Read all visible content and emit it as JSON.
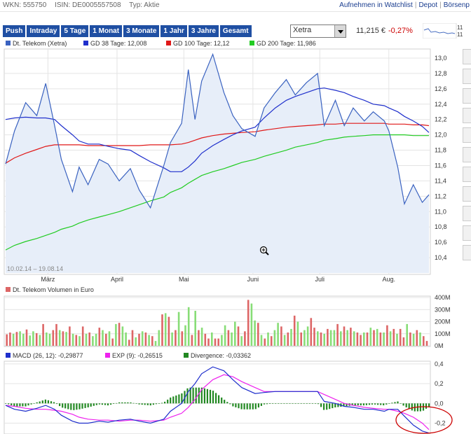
{
  "header": {
    "wkn_label": "WKN: 555750",
    "isin_label": "ISIN: DE0005557508",
    "typ_label": "Typ: Aktie",
    "links": [
      "Aufnehmen in Watchlist",
      "Depot",
      "Börsenp"
    ]
  },
  "tabs": [
    "Push",
    "Intraday",
    "5 Tage",
    "1 Monat",
    "3 Monate",
    "1 Jahr",
    "3 Jahre",
    "Gesamt"
  ],
  "exchange_select": {
    "value": "Xetra"
  },
  "quote": {
    "price": "11,215 €",
    "change": "-0,27%"
  },
  "mini_chart_labels": [
    "11",
    "11"
  ],
  "colors": {
    "price": "#3a62c0",
    "gd38": "#1f2fcc",
    "gd100": "#e01818",
    "gd200": "#22cc22",
    "vol_up": "#88dd77",
    "vol_down": "#dd6666",
    "macd": "#1f2fcc",
    "exp": "#ee22ee",
    "divergence": "#228822",
    "annotation": "#cc0000"
  },
  "sidebar_icons": [
    "bar-chart-icon",
    "clock-icon",
    "gear-icon",
    "pencil-icon",
    "zoom-in-icon",
    "zoom-out-icon",
    "play-icon",
    "print-icon",
    "save-icon",
    "close-icon",
    "arrow-icon"
  ],
  "chart_data": [
    {
      "type": "line",
      "legend": [
        "Dt. Telekom (Xetra)",
        "GD 38 Tage: 12,008",
        "GD 100 Tage: 12,12",
        "GD 200 Tage: 11,986"
      ],
      "date_range": "10.02.14 – 19.08.14",
      "x_labels": [
        "März",
        "April",
        "Mai",
        "Juni",
        "Juli",
        "Aug."
      ],
      "ylim": [
        10.2,
        13.1
      ],
      "yticks": [
        "10,4",
        "10,6",
        "10,8",
        "11,0",
        "11,2",
        "11,4",
        "11,6",
        "11,8",
        "12,0",
        "12,2",
        "12,4",
        "12,6",
        "12,8",
        "13,0"
      ],
      "x": [
        "2014-02-10",
        "2014-02-14",
        "2014-02-19",
        "2014-02-24",
        "2014-02-28",
        "2014-03-04",
        "2014-03-07",
        "2014-03-12",
        "2014-03-15",
        "2014-03-19",
        "2014-03-24",
        "2014-03-28",
        "2014-04-02",
        "2014-04-07",
        "2014-04-11",
        "2014-04-16",
        "2014-04-22",
        "2014-04-25",
        "2014-04-30",
        "2014-05-03",
        "2014-05-06",
        "2014-05-09",
        "2014-05-14",
        "2014-05-19",
        "2014-05-23",
        "2014-05-27",
        "2014-06-02",
        "2014-06-06",
        "2014-06-11",
        "2014-06-16",
        "2014-06-20",
        "2014-06-25",
        "2014-06-30",
        "2014-07-03",
        "2014-07-08",
        "2014-07-12",
        "2014-07-16",
        "2014-07-21",
        "2014-07-25",
        "2014-07-30",
        "2014-08-01",
        "2014-08-05",
        "2014-08-08",
        "2014-08-12",
        "2014-08-16",
        "2014-08-19"
      ],
      "series": [
        {
          "name": "Dt. Telekom (Xetra)",
          "values": [
            11.62,
            12.05,
            12.42,
            12.25,
            12.67,
            12.12,
            11.68,
            11.26,
            11.58,
            11.35,
            11.68,
            11.62,
            11.4,
            11.56,
            11.28,
            11.05,
            11.6,
            11.9,
            12.15,
            12.85,
            12.2,
            12.7,
            13.05,
            12.55,
            12.25,
            12.08,
            11.98,
            12.35,
            12.55,
            12.72,
            12.52,
            12.68,
            12.8,
            12.12,
            12.45,
            12.12,
            12.35,
            12.18,
            12.3,
            12.18,
            12.05,
            11.58,
            11.1,
            11.35,
            11.12,
            11.22
          ]
        },
        {
          "name": "GD 38 Tage",
          "values": [
            12.2,
            12.22,
            12.23,
            12.22,
            12.22,
            12.2,
            12.12,
            12.0,
            11.92,
            11.88,
            11.88,
            11.85,
            11.82,
            11.8,
            11.73,
            11.65,
            11.57,
            11.52,
            11.52,
            11.58,
            11.66,
            11.76,
            11.86,
            11.94,
            12.0,
            12.05,
            12.1,
            12.22,
            12.35,
            12.45,
            12.5,
            12.55,
            12.6,
            12.61,
            12.58,
            12.55,
            12.5,
            12.45,
            12.4,
            12.38,
            12.35,
            12.3,
            12.24,
            12.18,
            12.11,
            12.03
          ]
        },
        {
          "name": "GD 100 Tage",
          "values": [
            11.63,
            11.7,
            11.76,
            11.81,
            11.85,
            11.87,
            11.87,
            11.87,
            11.87,
            11.86,
            11.86,
            11.86,
            11.86,
            11.86,
            11.86,
            11.87,
            11.87,
            11.87,
            11.88,
            11.9,
            11.93,
            11.96,
            11.99,
            12.01,
            12.02,
            12.03,
            12.04,
            12.06,
            12.08,
            12.1,
            12.11,
            12.12,
            12.13,
            12.14,
            12.14,
            12.15,
            12.15,
            12.15,
            12.15,
            12.15,
            12.14,
            12.14,
            12.14,
            12.13,
            12.13,
            12.12
          ]
        },
        {
          "name": "GD 200 Tage",
          "values": [
            10.5,
            10.56,
            10.61,
            10.65,
            10.69,
            10.73,
            10.77,
            10.81,
            10.85,
            10.89,
            10.93,
            10.96,
            11.0,
            11.05,
            11.09,
            11.14,
            11.19,
            11.25,
            11.31,
            11.37,
            11.42,
            11.47,
            11.52,
            11.56,
            11.6,
            11.64,
            11.68,
            11.72,
            11.76,
            11.8,
            11.84,
            11.87,
            11.9,
            11.93,
            11.95,
            11.97,
            11.98,
            11.99,
            12.0,
            12.0,
            12.0,
            12.0,
            12.0,
            11.99,
            11.99,
            11.99
          ]
        }
      ]
    },
    {
      "type": "bar",
      "legend": [
        "Dt. Telekom Volumen in Euro"
      ],
      "ylim": [
        0,
        400
      ],
      "yticks": [
        "0M",
        "100M",
        "200M",
        "300M",
        "400M"
      ],
      "values": [
        95,
        110,
        100,
        115,
        120,
        100,
        135,
        85,
        120,
        105,
        90,
        180,
        110,
        100,
        130,
        180,
        130,
        120,
        115,
        160,
        100,
        90,
        80,
        160,
        100,
        110,
        80,
        100,
        150,
        130,
        100,
        120,
        60,
        180,
        190,
        160,
        110,
        50,
        130,
        70,
        100,
        120,
        110,
        90,
        80,
        40,
        130,
        260,
        270,
        240,
        110,
        130,
        280,
        120,
        170,
        320,
        90,
        290,
        130,
        150,
        100,
        60,
        110,
        60,
        60,
        90,
        170,
        130,
        110,
        200,
        160,
        80,
        120,
        380,
        350,
        210,
        190,
        90,
        60,
        110,
        80,
        130,
        190,
        160,
        90,
        110,
        140,
        250,
        200,
        110,
        130,
        160,
        230,
        150,
        120,
        110,
        100,
        140,
        130,
        130,
        180,
        120,
        160,
        130,
        150,
        120,
        110,
        90,
        110,
        110,
        150,
        130,
        140,
        110,
        110,
        170,
        120,
        140,
        100,
        140,
        70,
        180,
        110,
        100,
        130,
        110,
        80,
        40
      ],
      "directions": [
        "d",
        "d",
        "u",
        "d",
        "u",
        "u",
        "d",
        "u",
        "u",
        "d",
        "u",
        "d",
        "u",
        "u",
        "d",
        "d",
        "u",
        "d",
        "u",
        "d",
        "u",
        "d",
        "u",
        "d",
        "u",
        "d",
        "u",
        "u",
        "d",
        "u",
        "d",
        "u",
        "d",
        "u",
        "d",
        "u",
        "u",
        "d",
        "d",
        "u",
        "d",
        "u",
        "d",
        "u",
        "d",
        "u",
        "u",
        "d",
        "u",
        "d",
        "u",
        "d",
        "u",
        "d",
        "u",
        "u",
        "d",
        "u",
        "d",
        "u",
        "d",
        "d",
        "u",
        "d",
        "d",
        "u",
        "u",
        "d",
        "u",
        "u",
        "d",
        "u",
        "d",
        "d",
        "u",
        "u",
        "d",
        "u",
        "d",
        "u",
        "d",
        "u",
        "u",
        "d",
        "u",
        "d",
        "u",
        "d",
        "u",
        "d",
        "u",
        "u",
        "d",
        "d",
        "u",
        "d",
        "u",
        "d",
        "u",
        "u",
        "d",
        "u",
        "d",
        "u",
        "d",
        "u",
        "d",
        "d",
        "u",
        "d",
        "u",
        "d",
        "u",
        "d",
        "u",
        "d",
        "u",
        "d",
        "u",
        "d",
        "d",
        "u",
        "d",
        "u",
        "d",
        "u",
        "d",
        "d"
      ]
    },
    {
      "type": "line",
      "legend": [
        "MACD (26, 12): -0,29877",
        "EXP (9): -0,26515",
        "Divergence: -0,03362"
      ],
      "ylim": [
        -0.31,
        0.42
      ],
      "yticks": [
        "-0,2",
        "0,0",
        "0,2",
        "0,4"
      ],
      "series": [
        {
          "name": "MACD (26, 12)",
          "values": [
            -0.02,
            -0.06,
            -0.08,
            -0.05,
            -0.02,
            -0.06,
            -0.12,
            -0.18,
            -0.2,
            -0.2,
            -0.18,
            -0.19,
            -0.17,
            -0.16,
            -0.18,
            -0.2,
            -0.16,
            -0.08,
            0.0,
            0.12,
            0.2,
            0.3,
            0.37,
            0.33,
            0.24,
            0.16,
            0.1,
            0.11,
            0.12,
            0.12,
            0.12,
            0.12,
            0.12,
            0.02,
            0.0,
            -0.03,
            -0.04,
            -0.06,
            -0.06,
            -0.08,
            -0.06,
            -0.06,
            -0.13,
            -0.22,
            -0.28,
            -0.3
          ]
        },
        {
          "name": "EXP (9)",
          "values": [
            -0.02,
            -0.03,
            -0.05,
            -0.06,
            -0.06,
            -0.07,
            -0.08,
            -0.11,
            -0.14,
            -0.16,
            -0.17,
            -0.17,
            -0.18,
            -0.17,
            -0.17,
            -0.18,
            -0.17,
            -0.14,
            -0.1,
            -0.04,
            0.04,
            0.14,
            0.24,
            0.29,
            0.27,
            0.22,
            0.16,
            0.12,
            0.12,
            0.12,
            0.12,
            0.12,
            0.12,
            0.09,
            0.04,
            0.0,
            -0.02,
            -0.04,
            -0.05,
            -0.06,
            -0.06,
            -0.08,
            -0.1,
            -0.14,
            -0.2,
            -0.265
          ]
        }
      ],
      "annotation": "red ellipse around latest MACD values"
    }
  ]
}
